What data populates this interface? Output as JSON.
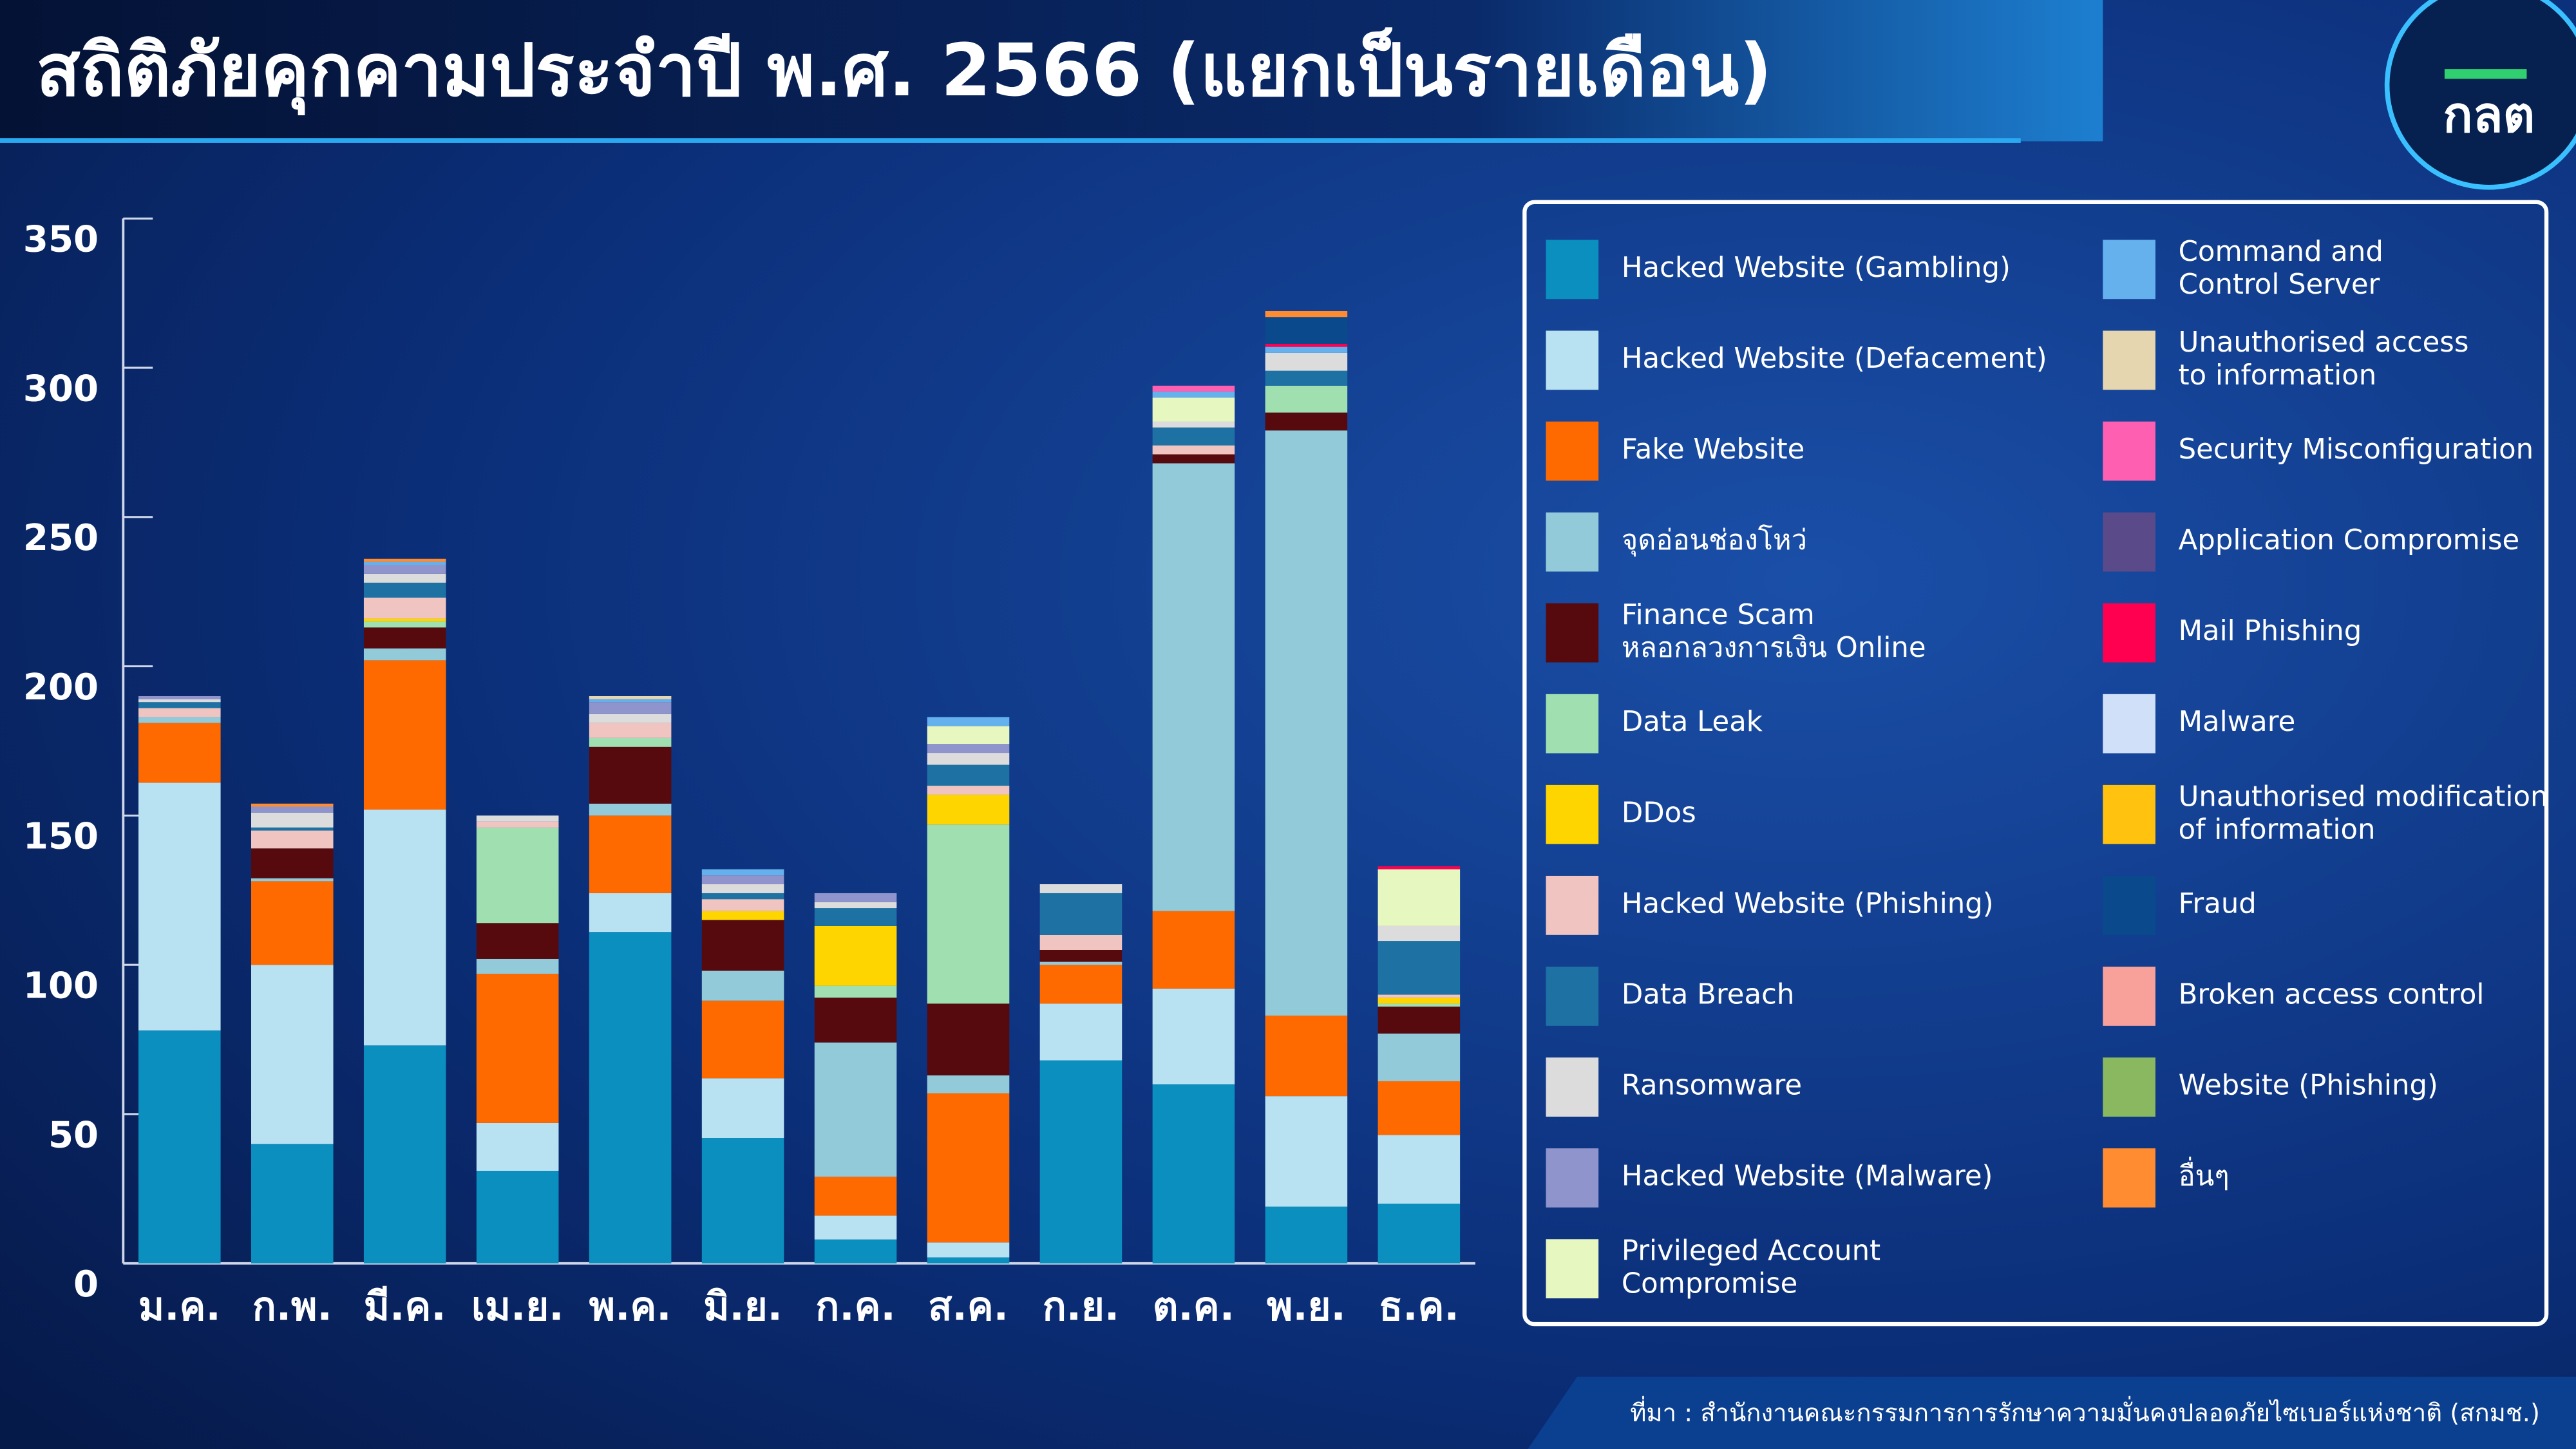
{
  "title": "สถิติภัยคุกคามประจำปี พ.ศ. 2566 (แยกเป็นรายเดือน)",
  "logo": "กลต",
  "source": "ที่มา : สำนักงานคณะกรรมการการรักษาความมั่นคงปลอดภัยไซเบอร์แห่งชาติ (สกมช.)",
  "chart_data": {
    "type": "stacked_bar",
    "categories": [
      "ม.ค.",
      "ก.พ.",
      "มี.ค.",
      "เม.ย.",
      "พ.ค.",
      "มิ.ย.",
      "ก.ค.",
      "ส.ค.",
      "ก.ย.",
      "ต.ค.",
      "พ.ย.",
      "ธ.ค."
    ],
    "ylim": [
      0,
      350
    ],
    "yticks": [
      0,
      50,
      100,
      150,
      200,
      250,
      300,
      350
    ],
    "series": [
      {
        "name": "Hacked Website (Gambling)",
        "color": "#0a8fbf",
        "values": [
          78,
          40,
          73,
          31,
          111,
          42,
          8,
          2,
          68,
          60,
          19,
          20
        ]
      },
      {
        "name": "Hacked Website (Defacement)",
        "color": "#b8e2f2",
        "values": [
          83,
          60,
          79,
          16,
          13,
          20,
          8,
          5,
          19,
          32,
          37,
          23
        ]
      },
      {
        "name": "Fake Website",
        "color": "#ff6a00",
        "values": [
          20,
          28,
          50,
          50,
          26,
          26,
          13,
          50,
          13,
          26,
          27,
          18
        ]
      },
      {
        "name": "จุดอ่อนช่องโหว่",
        "color": "#93cad9",
        "values": [
          2,
          1,
          4,
          5,
          4,
          10,
          45,
          6,
          1,
          150,
          196,
          16
        ]
      },
      {
        "name": "Finance Scam\nหลอกลวงการเงิน Online",
        "color": "#560a0e",
        "values": [
          0,
          10,
          7,
          12,
          19,
          17,
          15,
          24,
          4,
          3,
          6,
          9
        ]
      },
      {
        "name": "Data Leak",
        "color": "#9fdfb0",
        "values": [
          0,
          0,
          2,
          32,
          3,
          0,
          4,
          60,
          0,
          0,
          9,
          1
        ]
      },
      {
        "name": "DDos",
        "color": "#ffd500",
        "values": [
          0,
          0,
          1,
          0,
          0,
          3,
          20,
          10,
          0,
          0,
          0,
          2
        ]
      },
      {
        "name": "Hacked Website (Phishing)",
        "color": "#f0c4c0",
        "values": [
          3,
          6,
          7,
          2,
          5,
          4,
          0,
          3,
          5,
          3,
          0,
          1
        ]
      },
      {
        "name": "Data Breach",
        "color": "#1d72a3",
        "values": [
          2,
          1,
          5,
          0,
          0,
          2,
          6,
          7,
          14,
          6,
          5,
          18
        ]
      },
      {
        "name": "Ransomware",
        "color": "#dcdcdc",
        "values": [
          1,
          5,
          3,
          2,
          3,
          3,
          2,
          4,
          3,
          2,
          6,
          5
        ]
      },
      {
        "name": "Hacked Website (Malware)",
        "color": "#8f94cc",
        "values": [
          1,
          2,
          3,
          0,
          4,
          3,
          3,
          3,
          0,
          0,
          0,
          0
        ]
      },
      {
        "name": "Privileged Account\nCompromise",
        "color": "#e6f7c0",
        "values": [
          0,
          0,
          0,
          0,
          0,
          0,
          0,
          6,
          0,
          8,
          0,
          19
        ]
      },
      {
        "name": "Command and\nControl Server",
        "color": "#64b1ee",
        "values": [
          0,
          0,
          1,
          0,
          1,
          2,
          0,
          3,
          0,
          2,
          2,
          0
        ]
      },
      {
        "name": "Unauthorised access\nto information",
        "color": "#e6d6b0",
        "values": [
          0,
          0,
          0,
          0,
          1,
          0,
          0,
          0,
          0,
          0,
          0,
          0
        ]
      },
      {
        "name": "Security Misconfiguration",
        "color": "#ff5fb0",
        "values": [
          0,
          0,
          0,
          0,
          0,
          0,
          0,
          0,
          0,
          2,
          0,
          0
        ]
      },
      {
        "name": "Application Compromise",
        "color": "#5a4a8a",
        "values": [
          0,
          0,
          0,
          0,
          0,
          0,
          0,
          0,
          0,
          0,
          0,
          0
        ]
      },
      {
        "name": "Mail Phishing",
        "color": "#ff0050",
        "values": [
          0,
          0,
          0,
          0,
          0,
          0,
          0,
          0,
          0,
          0,
          1,
          1
        ]
      },
      {
        "name": "Malware",
        "color": "#d0e0f8",
        "values": [
          0,
          0,
          0,
          0,
          0,
          0,
          0,
          0,
          0,
          0,
          0,
          0
        ]
      },
      {
        "name": "Unauthorised modification\nof information",
        "color": "#ffc20e",
        "values": [
          0,
          0,
          0,
          0,
          0,
          0,
          0,
          0,
          0,
          0,
          0,
          0
        ]
      },
      {
        "name": "Fraud",
        "color": "#0a4a8c",
        "values": [
          0,
          0,
          0,
          0,
          0,
          0,
          0,
          0,
          0,
          0,
          9,
          0
        ]
      },
      {
        "name": "Broken access control",
        "color": "#f8a09a",
        "values": [
          0,
          0,
          0,
          0,
          0,
          0,
          0,
          0,
          0,
          0,
          0,
          0
        ]
      },
      {
        "name": "Website (Phishing)",
        "color": "#8ab860",
        "values": [
          0,
          0,
          0,
          0,
          0,
          0,
          0,
          0,
          0,
          0,
          0,
          0
        ]
      },
      {
        "name": "อื่นๆ",
        "color": "#ff8c30",
        "values": [
          0,
          1,
          1,
          0,
          0,
          0,
          0,
          0,
          0,
          0,
          2,
          0
        ]
      }
    ]
  }
}
